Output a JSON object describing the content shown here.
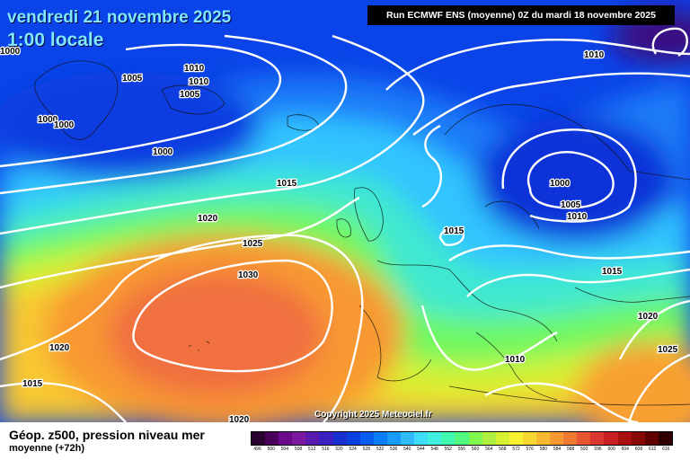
{
  "header": {
    "date": "vendredi 21 novembre 2025",
    "time": "1:00 locale",
    "run": "Run ECMWF ENS (moyenne) 0Z du mardi 18 novembre 2025"
  },
  "copyright": "Copyright 2025 Meteociel.fr",
  "legend": {
    "title": "Géop. z500, pression niveau mer",
    "subtitle": "moyenne  (+72h)",
    "scale": [
      "496",
      "500",
      "504",
      "508",
      "512",
      "516",
      "520",
      "524",
      "528",
      "532",
      "536",
      "540",
      "544",
      "548",
      "552",
      "556",
      "560",
      "564",
      "568",
      "572",
      "576",
      "580",
      "584",
      "588",
      "592",
      "596",
      "600",
      "604",
      "608",
      "612",
      "616"
    ],
    "colors": [
      "#2a0030",
      "#4a005a",
      "#6a0a8a",
      "#7a1aa0",
      "#5a1ab0",
      "#3a20c0",
      "#1a30d0",
      "#0a40e0",
      "#0a5cf0",
      "#0a7cf8",
      "#1a9cff",
      "#30bcff",
      "#40dcf8",
      "#40f0e0",
      "#40f8b0",
      "#50f880",
      "#80f850",
      "#b0f040",
      "#d8f030",
      "#f8f030",
      "#f8d830",
      "#f8b830",
      "#f89830",
      "#f07830",
      "#e85830",
      "#d83830",
      "#c82020",
      "#a81010",
      "#880808",
      "#600000",
      "#300000"
    ]
  },
  "isobar_labels": [
    "1000",
    "1005",
    "1010",
    "1010",
    "1005",
    "1000",
    "1000",
    "1000",
    "1015",
    "1020",
    "1025",
    "1030",
    "1020",
    "1015",
    "1020",
    "1010",
    "1015",
    "1000",
    "1005",
    "1010",
    "1015",
    "1020",
    "1025",
    "1010"
  ],
  "map_features": {
    "high_pressure_center": "1030",
    "low_pressure_center_scandinavia": "1000",
    "low_pressure_center_greenland": "1000"
  }
}
